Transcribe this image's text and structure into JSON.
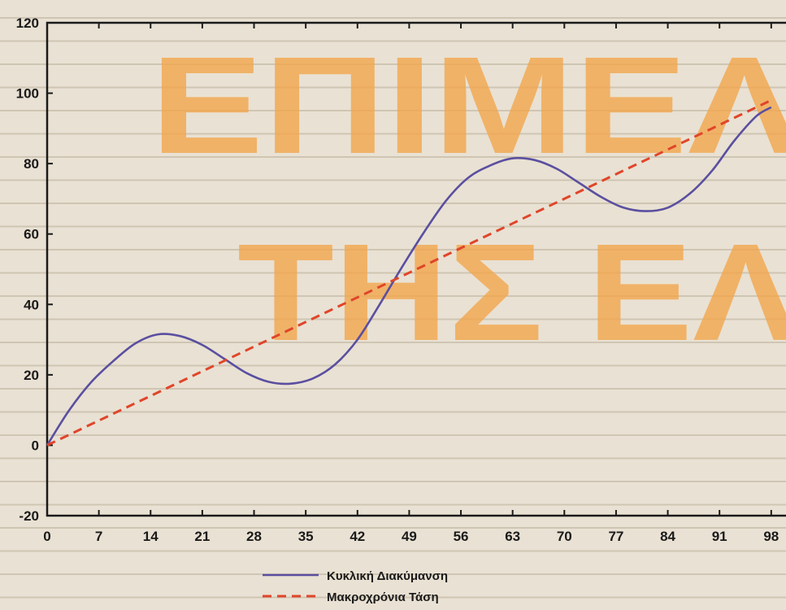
{
  "watermark": {
    "line1": "ΕΠΙΜΕΛ",
    "line2": "ΤΗΣ ΕΛ"
  },
  "colors": {
    "cyclic": "#5a4fa0",
    "trend": "#e0452a",
    "background": "#e9e1d3",
    "watermark": "#f3a64a",
    "axis": "#1a1a1a"
  },
  "chart_data": {
    "type": "line",
    "title": "",
    "xlabel": "",
    "ylabel": "",
    "xlim": [
      0,
      100
    ],
    "ylim": [
      -20,
      120
    ],
    "xticks": [
      0,
      7,
      14,
      21,
      28,
      35,
      42,
      49,
      56,
      63,
      70,
      77,
      84,
      91,
      98
    ],
    "yticks": [
      -20,
      0,
      20,
      40,
      60,
      80,
      100,
      120
    ],
    "grid": false,
    "legend_position": "bottom-center",
    "series": [
      {
        "name": "Κυκλική Διακύμανση",
        "style": "solid",
        "x": [
          0,
          3,
          6,
          9,
          12,
          15,
          18,
          21,
          24,
          27,
          30,
          33,
          36,
          39,
          42,
          45,
          48,
          51,
          54,
          57,
          60,
          63,
          66,
          69,
          72,
          75,
          78,
          81,
          84,
          87,
          90,
          93,
          96,
          98
        ],
        "y": [
          0,
          10,
          18,
          24,
          29,
          31.5,
          31,
          28.5,
          24.5,
          20.5,
          18,
          17.5,
          19,
          23,
          30,
          40,
          50.5,
          60.5,
          69.5,
          76,
          79.5,
          81.5,
          81,
          78.5,
          74.5,
          70.5,
          67.5,
          66.5,
          67.5,
          71.5,
          78,
          86.5,
          93.5,
          96
        ]
      },
      {
        "name": "Μακροχρόνια Τάση",
        "style": "dashed",
        "x": [
          0,
          7,
          14,
          21,
          28,
          35,
          42,
          49,
          56,
          63,
          70,
          77,
          84,
          91,
          98
        ],
        "y": [
          0,
          7,
          14,
          21,
          28,
          35,
          42,
          49,
          56,
          63,
          70,
          77,
          84,
          91,
          98
        ]
      }
    ]
  }
}
